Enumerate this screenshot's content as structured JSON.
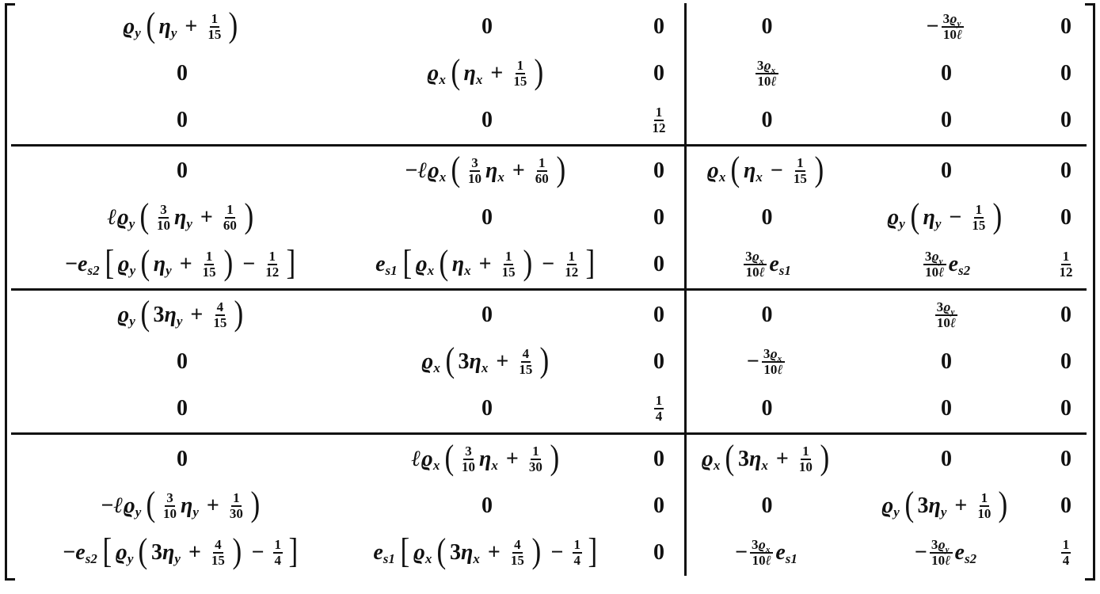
{
  "matrix": {
    "rows": [
      [
        "ϱ_y (η_y + {1|15})",
        "0",
        "0",
        "0",
        "−{3ϱ_y|10ℓ}",
        "0"
      ],
      [
        "0",
        "ϱ_x (η_x + {1|15})",
        "0",
        "{3ϱ_x|10ℓ}",
        "0",
        "0"
      ],
      [
        "0",
        "0",
        "{1|12}",
        "0",
        "0",
        "0"
      ],
      [
        "0",
        "−ℓϱ_x ({3|10}η_x + {1|60})",
        "0",
        "ϱ_x (η_x − {1|15})",
        "0",
        "0"
      ],
      [
        "ℓϱ_y ({3|10}η_y + {1|60})",
        "0",
        "0",
        "0",
        "ϱ_y (η_y − {1|15})",
        "0"
      ],
      [
        "− e_{s2} [ϱ_y (η_y + {1|15}) − {1|12}]",
        "e_{s1} [ϱ_x (η_x + {1|15}) − {1|12}]",
        "0",
        "{3ϱ_x|10ℓ}e_{s1}",
        "{3ϱ_y|10ℓ}e_{s2}",
        "{1|12}"
      ],
      [
        "ϱ_y (3η_y + {4|15})",
        "0",
        "0",
        "0",
        "{3ϱ_y|10ℓ}",
        "0"
      ],
      [
        "0",
        "ϱ_x (3η_x + {4|15})",
        "0",
        "−{3ϱ_x|10ℓ}",
        "0",
        "0"
      ],
      [
        "0",
        "0",
        "{1|4}",
        "0",
        "0",
        "0"
      ],
      [
        "0",
        "ℓϱ_x ({3|10}η_x + {1|30})",
        "0",
        "ϱ_x (3η_x + {1|10})",
        "0",
        "0"
      ],
      [
        "−ℓϱ_y ({3|10}η_y + {1|30})",
        "0",
        "0",
        "0",
        "ϱ_y (3η_y + {1|10})",
        "0"
      ],
      [
        "−e_{s2} [ϱ_y (3η_y + {4|15}) − {1|4}]",
        "e_{s1} [ϱ_x (3η_x + {4|15}) − {1|4}]",
        "0",
        "−{3ϱ_x|10ℓ}e_{s1}",
        "−{3ϱ_y|10ℓ}e_{s2}",
        "{1|4}"
      ]
    ]
  }
}
